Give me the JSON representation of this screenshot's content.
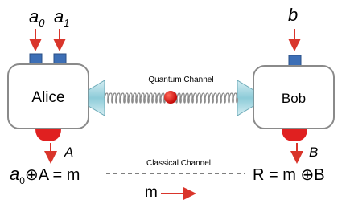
{
  "alice_inputs": [
    {
      "base": "a",
      "sub": "0"
    },
    {
      "base": "a",
      "sub": "1"
    }
  ],
  "bob_input": "b",
  "alice": "Alice",
  "bob": "Bob",
  "quantum_channel": "Quantum Channel",
  "alice_output": "A",
  "bob_output": "B",
  "classical_channel": "Classical Channel",
  "alice_equation": {
    "base": "a",
    "sub": "0",
    "rest": "⊕A = m"
  },
  "bob_equation": "R = m ⊕B",
  "message": "m"
}
